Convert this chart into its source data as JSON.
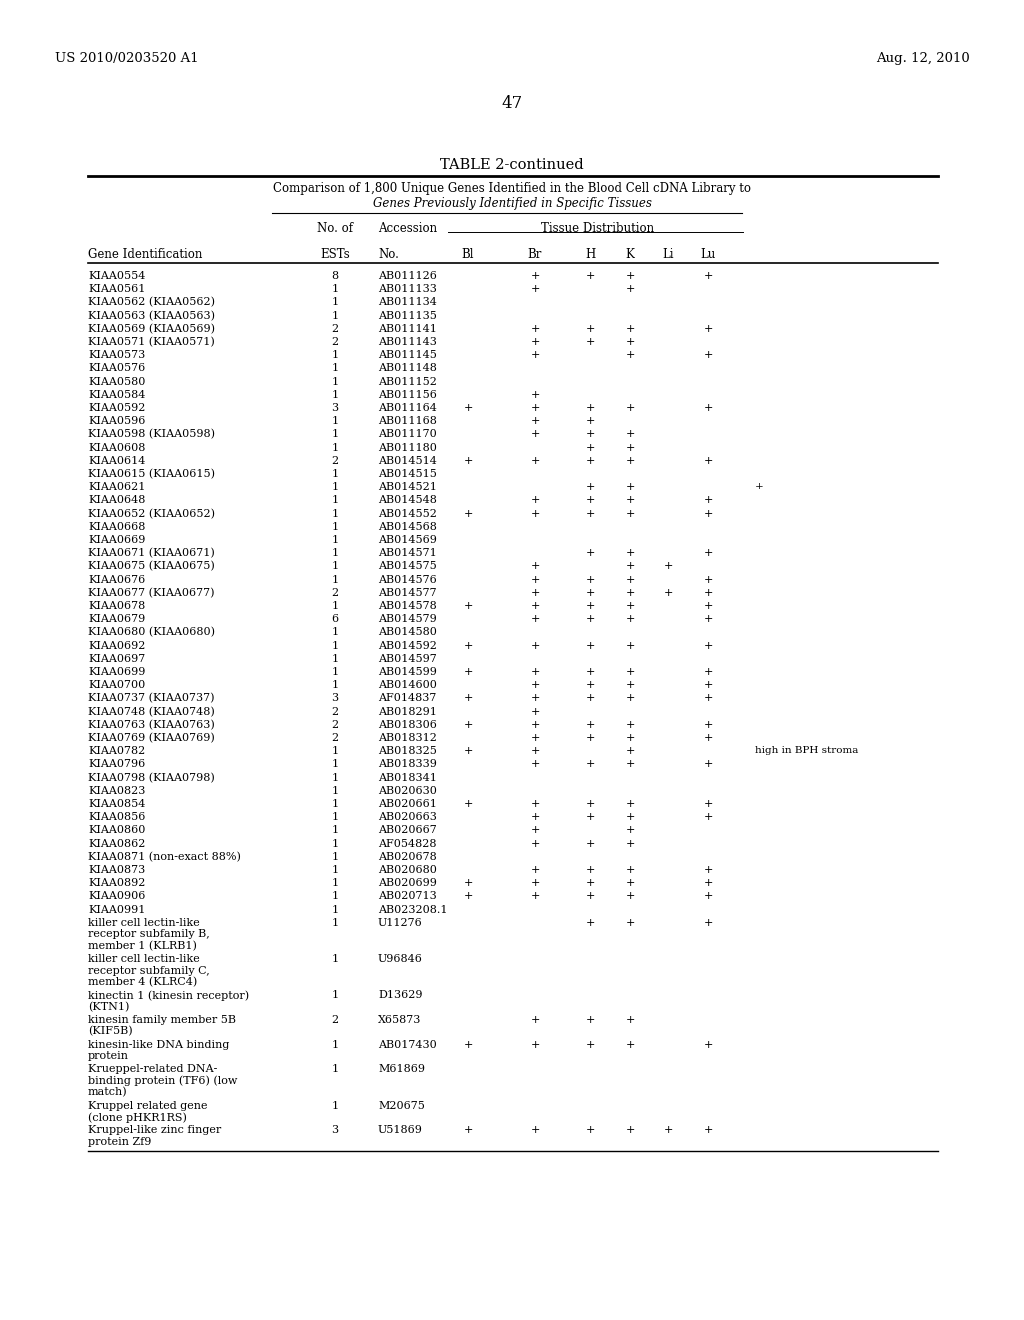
{
  "header_left": "US 2010/0203520 A1",
  "header_right": "Aug. 12, 2010",
  "page_number": "47",
  "table_title": "TABLE 2-continued",
  "subtitle1": "Comparison of 1,800 Unique Genes Identified in the Blood Cell cDNA Library to",
  "subtitle2": "Genes Previously Identified in Specific Tissues",
  "rows": [
    [
      "KIAA0554",
      "8",
      "AB011126",
      "",
      "+",
      "+",
      "+",
      "",
      "+",
      ""
    ],
    [
      "KIAA0561",
      "1",
      "AB011133",
      "",
      "+",
      "",
      "+",
      "",
      "",
      ""
    ],
    [
      "KIAA0562 (KIAA0562)",
      "1",
      "AB011134",
      "",
      "",
      "",
      "",
      "",
      "",
      ""
    ],
    [
      "KIAA0563 (KIAA0563)",
      "1",
      "AB011135",
      "",
      "",
      "",
      "",
      "",
      "",
      ""
    ],
    [
      "KIAA0569 (KIAA0569)",
      "2",
      "AB011141",
      "",
      "+",
      "+",
      "+",
      "",
      "+",
      ""
    ],
    [
      "KIAA0571 (KIAA0571)",
      "2",
      "AB011143",
      "",
      "+",
      "+",
      "+",
      "",
      "",
      ""
    ],
    [
      "KIAA0573",
      "1",
      "AB011145",
      "",
      "+",
      "",
      "+",
      "",
      "+",
      ""
    ],
    [
      "KIAA0576",
      "1",
      "AB011148",
      "",
      "",
      "",
      "",
      "",
      "",
      ""
    ],
    [
      "KIAA0580",
      "1",
      "AB011152",
      "",
      "",
      "",
      "",
      "",
      "",
      ""
    ],
    [
      "KIAA0584",
      "1",
      "AB011156",
      "",
      "+",
      "",
      "",
      "",
      "",
      ""
    ],
    [
      "KIAA0592",
      "3",
      "AB011164",
      "+",
      "+",
      "+",
      "+",
      "",
      "+",
      ""
    ],
    [
      "KIAA0596",
      "1",
      "AB011168",
      "",
      "+",
      "+",
      "",
      "",
      "",
      ""
    ],
    [
      "KIAA0598 (KIAA0598)",
      "1",
      "AB011170",
      "",
      "+",
      "+",
      "+",
      "",
      "",
      ""
    ],
    [
      "KIAA0608",
      "1",
      "AB011180",
      "",
      "",
      "+",
      "+",
      "",
      "",
      ""
    ],
    [
      "KIAA0614",
      "2",
      "AB014514",
      "+",
      "+",
      "+",
      "+",
      "",
      "+",
      ""
    ],
    [
      "KIAA0615 (KIAA0615)",
      "1",
      "AB014515",
      "",
      "",
      "",
      "",
      "",
      "",
      ""
    ],
    [
      "KIAA0621",
      "1",
      "AB014521",
      "",
      "",
      "+",
      "+",
      "",
      "",
      "+"
    ],
    [
      "KIAA0648",
      "1",
      "AB014548",
      "",
      "+",
      "+",
      "+",
      "",
      "+",
      ""
    ],
    [
      "KIAA0652 (KIAA0652)",
      "1",
      "AB014552",
      "+",
      "+",
      "+",
      "+",
      "",
      "+",
      ""
    ],
    [
      "KIAA0668",
      "1",
      "AB014568",
      "",
      "",
      "",
      "",
      "",
      "",
      ""
    ],
    [
      "KIAA0669",
      "1",
      "AB014569",
      "",
      "",
      "",
      "",
      "",
      "",
      ""
    ],
    [
      "KIAA0671 (KIAA0671)",
      "1",
      "AB014571",
      "",
      "",
      "+",
      "+",
      "",
      "+",
      ""
    ],
    [
      "KIAA0675 (KIAA0675)",
      "1",
      "AB014575",
      "",
      "+",
      "",
      "+",
      "+",
      "",
      ""
    ],
    [
      "KIAA0676",
      "1",
      "AB014576",
      "",
      "+",
      "+",
      "+",
      "",
      "+",
      ""
    ],
    [
      "KIAA0677 (KIAA0677)",
      "2",
      "AB014577",
      "",
      "+",
      "+",
      "+",
      "+",
      "+",
      ""
    ],
    [
      "KIAA0678",
      "1",
      "AB014578",
      "+",
      "+",
      "+",
      "+",
      "",
      "+",
      ""
    ],
    [
      "KIAA0679",
      "6",
      "AB014579",
      "",
      "+",
      "+",
      "+",
      "",
      "+",
      ""
    ],
    [
      "KIAA0680 (KIAA0680)",
      "1",
      "AB014580",
      "",
      "",
      "",
      "",
      "",
      "",
      ""
    ],
    [
      "KIAA0692",
      "1",
      "AB014592",
      "+",
      "+",
      "+",
      "+",
      "",
      "+",
      ""
    ],
    [
      "KIAA0697",
      "1",
      "AB014597",
      "",
      "",
      "",
      "",
      "",
      "",
      ""
    ],
    [
      "KIAA0699",
      "1",
      "AB014599",
      "+",
      "+",
      "+",
      "+",
      "",
      "+",
      ""
    ],
    [
      "KIAA0700",
      "1",
      "AB014600",
      "",
      "+",
      "+",
      "+",
      "",
      "+",
      ""
    ],
    [
      "KIAA0737 (KIAA0737)",
      "3",
      "AF014837",
      "+",
      "+",
      "+",
      "+",
      "",
      "+",
      ""
    ],
    [
      "KIAA0748 (KIAA0748)",
      "2",
      "AB018291",
      "",
      "+",
      "",
      "",
      "",
      "",
      ""
    ],
    [
      "KIAA0763 (KIAA0763)",
      "2",
      "AB018306",
      "+",
      "+",
      "+",
      "+",
      "",
      "+",
      ""
    ],
    [
      "KIAA0769 (KIAA0769)",
      "2",
      "AB018312",
      "",
      "+",
      "+",
      "+",
      "",
      "+",
      ""
    ],
    [
      "KIAA0782",
      "1",
      "AB018325",
      "+",
      "+",
      "",
      "+",
      "",
      "",
      "high in BPH stroma"
    ],
    [
      "KIAA0796",
      "1",
      "AB018339",
      "",
      "+",
      "+",
      "+",
      "",
      "+",
      ""
    ],
    [
      "KIAA0798 (KIAA0798)",
      "1",
      "AB018341",
      "",
      "",
      "",
      "",
      "",
      "",
      ""
    ],
    [
      "KIAA0823",
      "1",
      "AB020630",
      "",
      "",
      "",
      "",
      "",
      "",
      ""
    ],
    [
      "KIAA0854",
      "1",
      "AB020661",
      "+",
      "+",
      "+",
      "+",
      "",
      "+",
      ""
    ],
    [
      "KIAA0856",
      "1",
      "AB020663",
      "",
      "+",
      "+",
      "+",
      "",
      "+",
      ""
    ],
    [
      "KIAA0860",
      "1",
      "AB020667",
      "",
      "+",
      "",
      "+",
      "",
      "",
      ""
    ],
    [
      "KIAA0862",
      "1",
      "AF054828",
      "",
      "+",
      "+",
      "+",
      "",
      "",
      ""
    ],
    [
      "KIAA0871 (non-exact 88%)",
      "1",
      "AB020678",
      "",
      "",
      "",
      "",
      "",
      "",
      ""
    ],
    [
      "KIAA0873",
      "1",
      "AB020680",
      "",
      "+",
      "+",
      "+",
      "",
      "+",
      ""
    ],
    [
      "KIAA0892",
      "1",
      "AB020699",
      "+",
      "+",
      "+",
      "+",
      "",
      "+",
      ""
    ],
    [
      "KIAA0906",
      "1",
      "AB020713",
      "+",
      "+",
      "+",
      "+",
      "",
      "+",
      ""
    ],
    [
      "KIAA0991",
      "1",
      "AB023208.1",
      "",
      "",
      "",
      "",
      "",
      "",
      ""
    ],
    [
      "killer cell lectin-like\nreceptor subfamily B,\nmember 1 (KLRB1)",
      "1",
      "U11276",
      "",
      "",
      "+",
      "+",
      "",
      "+",
      ""
    ],
    [
      "killer cell lectin-like\nreceptor subfamily C,\nmember 4 (KLRC4)",
      "1",
      "U96846",
      "",
      "",
      "",
      "",
      "",
      "",
      ""
    ],
    [
      "kinectin 1 (kinesin receptor)\n(KTN1)",
      "1",
      "D13629",
      "",
      "",
      "",
      "",
      "",
      "",
      ""
    ],
    [
      "kinesin family member 5B\n(KIF5B)",
      "2",
      "X65873",
      "",
      "+",
      "+",
      "+",
      "",
      "",
      ""
    ],
    [
      "kinesin-like DNA binding\nprotein",
      "1",
      "AB017430",
      "+",
      "+",
      "+",
      "+",
      "",
      "+",
      ""
    ],
    [
      "Krueppel-related DNA-\nbinding protein (TF6) (low\nmatch)",
      "1",
      "M61869",
      "",
      "",
      "",
      "",
      "",
      "",
      ""
    ],
    [
      "Kruppel related gene\n(clone pHKR1RS)",
      "1",
      "M20675",
      "",
      "",
      "",
      "",
      "",
      "",
      ""
    ],
    [
      "Kruppel-like zinc finger\nprotein Zf9",
      "3",
      "U51869",
      "+",
      "+",
      "+",
      "+",
      "+",
      "+",
      ""
    ]
  ]
}
